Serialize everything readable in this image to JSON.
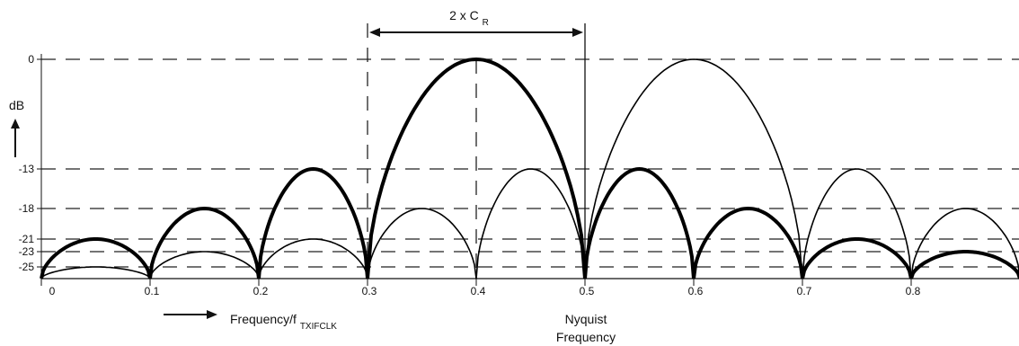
{
  "chart_data": {
    "type": "line",
    "title": "",
    "ylabel": "dB",
    "xlabel_prefix": "Frequency/f",
    "xlabel_sub": "TXIFCLK",
    "xlim": [
      0,
      0.9
    ],
    "ylim": [
      -27,
      0
    ],
    "y_dashed_levels": [
      0,
      -13,
      -18,
      -21,
      -23,
      -25
    ],
    "y_ticks": [
      "0",
      "-13",
      "-18",
      "-21",
      "-23",
      "-25"
    ],
    "x_ticks": [
      "0",
      "0.1",
      "0.2",
      "0.3",
      "0.4",
      "0.5",
      "0.6",
      "0.7",
      "0.8"
    ],
    "x_tick_values": [
      0,
      0.1,
      0.2,
      0.3,
      0.4,
      0.5,
      0.6,
      0.7,
      0.8
    ],
    "x_dashed_lines": [
      0.3,
      0.4
    ],
    "x_solid_line": 0.5,
    "bandwidth_annotation": {
      "text": "2 x C",
      "sub": "R",
      "from": 0.3,
      "to": 0.5
    },
    "nyquist_label": [
      "Nyquist",
      "Frequency"
    ],
    "series": [
      {
        "style": "thick",
        "lobes": [
          {
            "from": 0.0,
            "to": 0.1,
            "peak": -21
          },
          {
            "from": 0.1,
            "to": 0.2,
            "peak": -18
          },
          {
            "from": 0.2,
            "to": 0.3,
            "peak": -13
          },
          {
            "from": 0.3,
            "to": 0.5,
            "peak": 0
          },
          {
            "from": 0.5,
            "to": 0.6,
            "peak": -13
          },
          {
            "from": 0.6,
            "to": 0.7,
            "peak": -18
          },
          {
            "from": 0.7,
            "to": 0.8,
            "peak": -21
          },
          {
            "from": 0.8,
            "to": 0.9,
            "peak": -23
          }
        ]
      },
      {
        "style": "thin",
        "lobes": [
          {
            "from": 0.0,
            "to": 0.1,
            "peak": -25
          },
          {
            "from": 0.1,
            "to": 0.2,
            "peak": -23
          },
          {
            "from": 0.2,
            "to": 0.3,
            "peak": -21
          },
          {
            "from": 0.3,
            "to": 0.4,
            "peak": -18
          },
          {
            "from": 0.4,
            "to": 0.5,
            "peak": -13
          },
          {
            "from": 0.5,
            "to": 0.7,
            "peak": 0
          },
          {
            "from": 0.7,
            "to": 0.8,
            "peak": -13
          },
          {
            "from": 0.8,
            "to": 0.9,
            "peak": -18
          }
        ]
      }
    ]
  }
}
